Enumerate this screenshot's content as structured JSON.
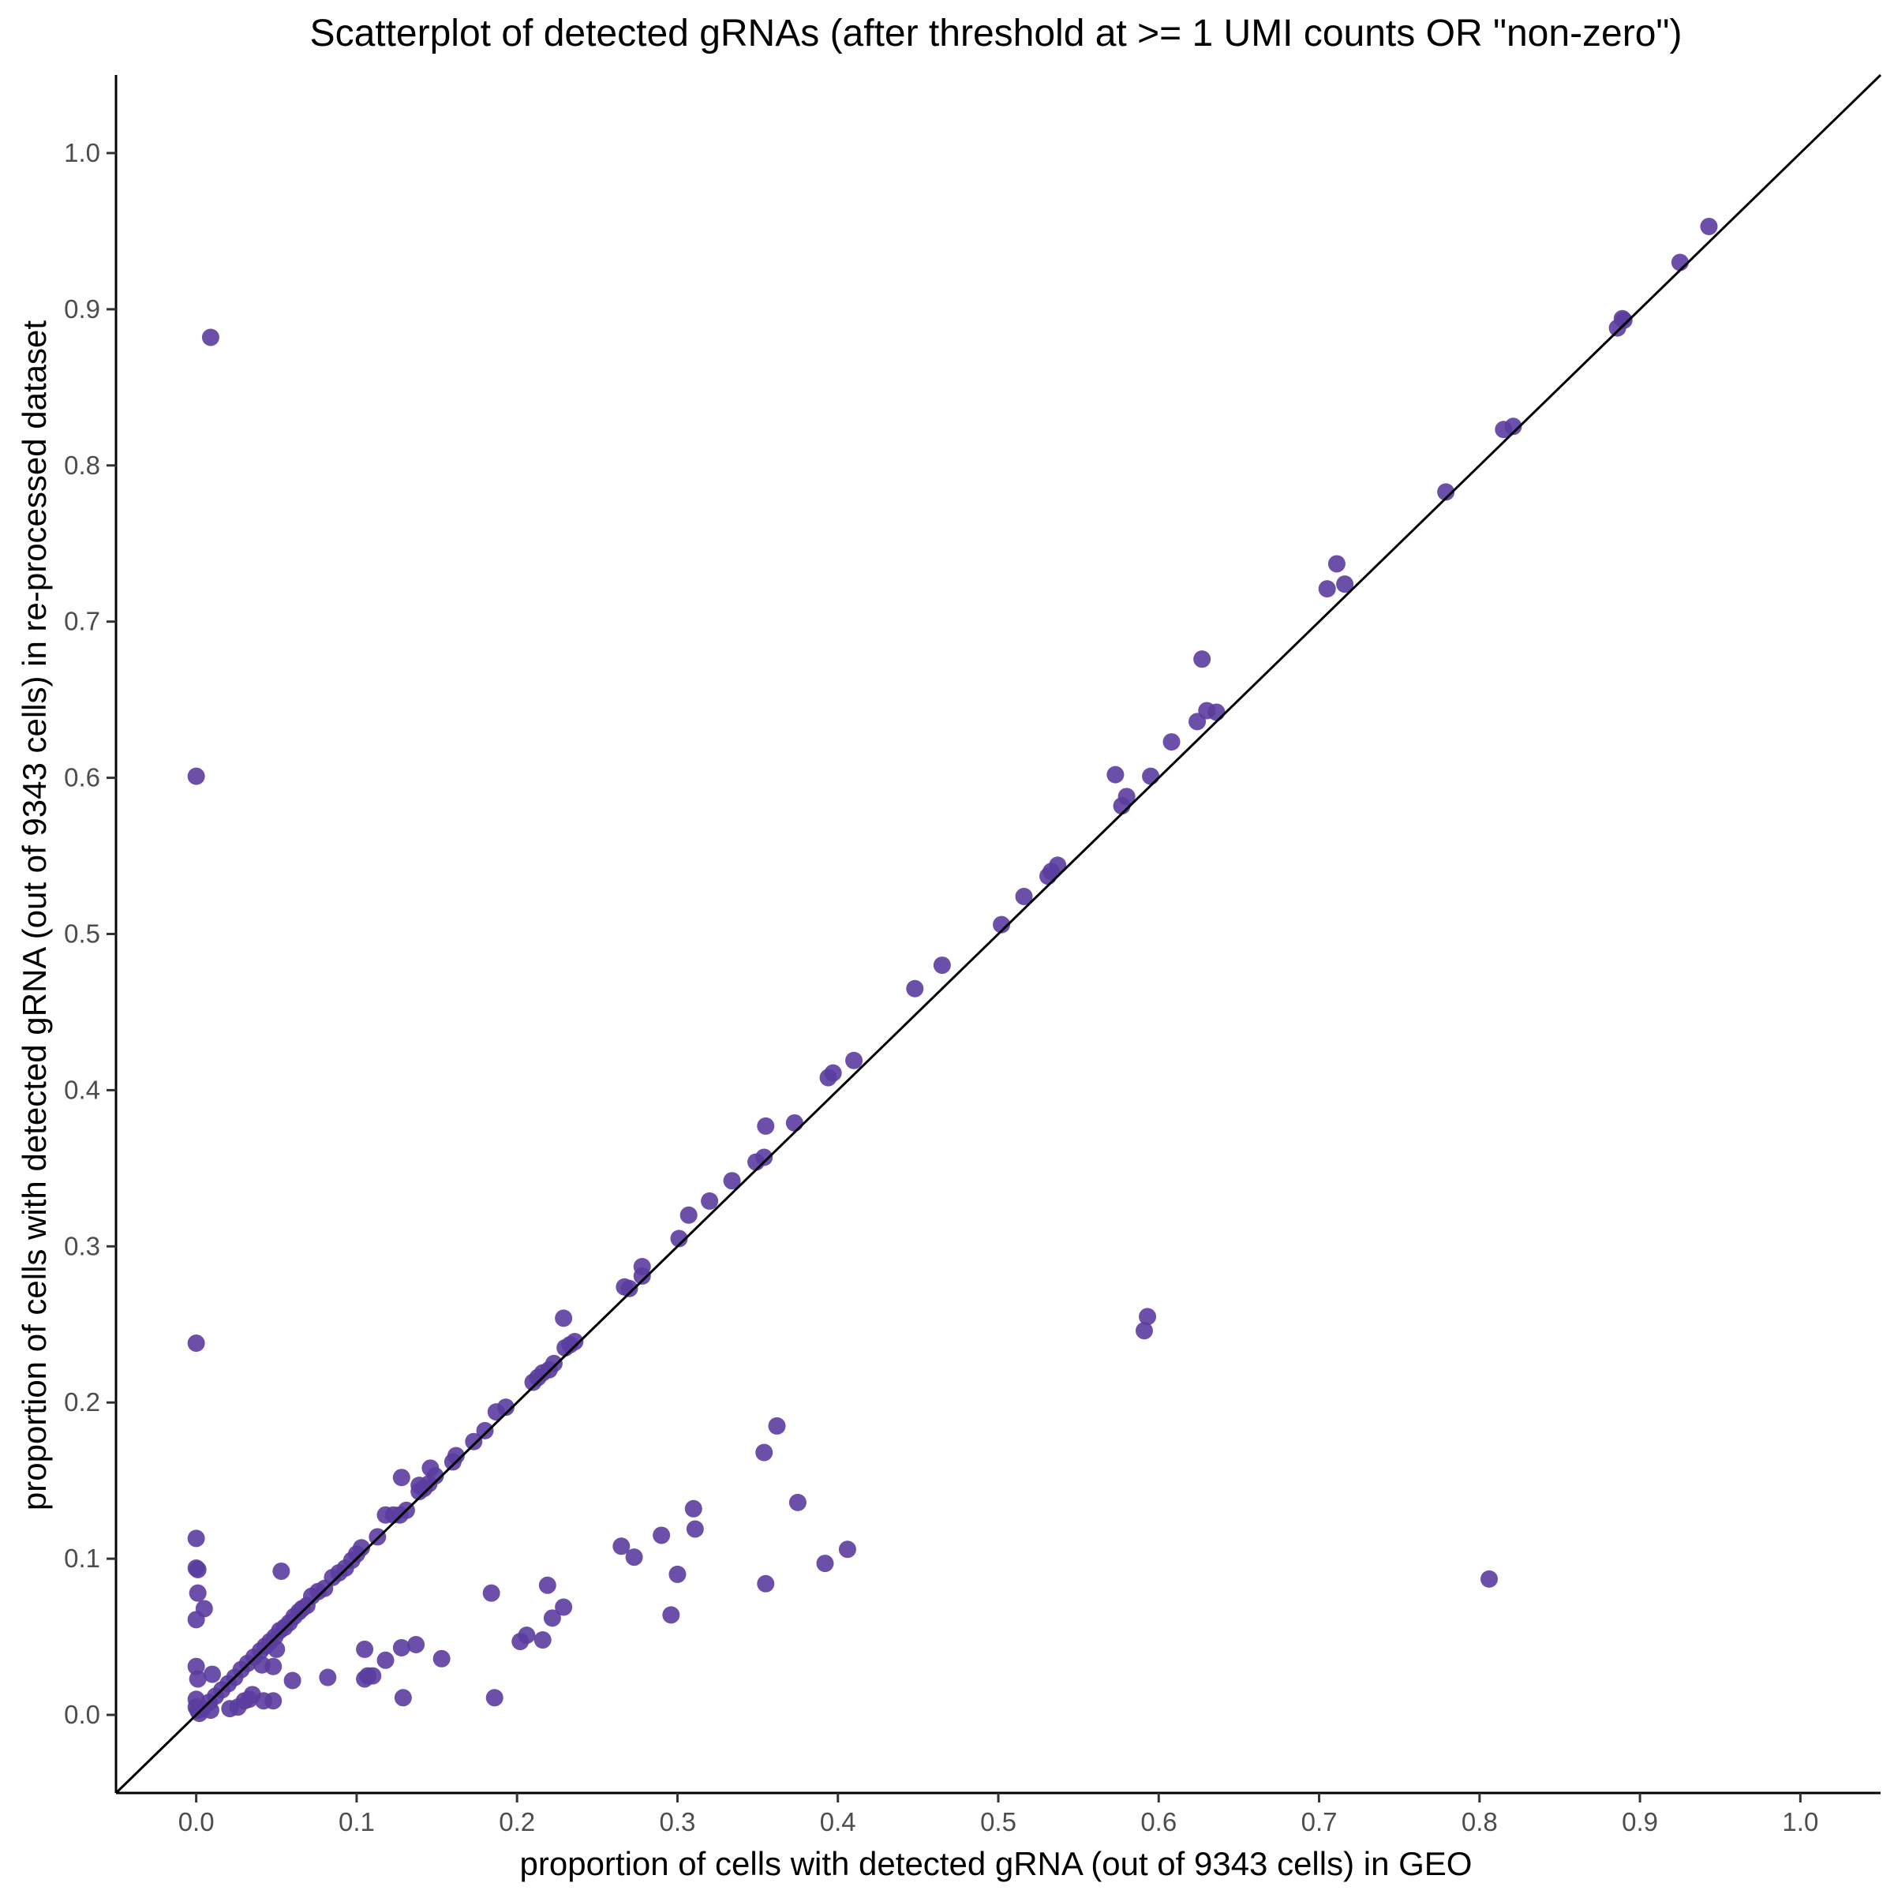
{
  "chart_data": {
    "type": "scatter",
    "title": "Scatterplot of detected gRNAs (after threshold at >= 1 UMI counts OR \"non-zero\")",
    "xlabel": "proportion of cells with detected gRNA (out of 9343 cells) in GEO",
    "ylabel": "proportion of cells with detected gRNA (out of 9343 cells) in re-processed dataset",
    "xlim": [
      -0.05,
      1.05
    ],
    "ylim": [
      -0.05,
      1.05
    ],
    "x_ticks": [
      "0.0",
      "0.1",
      "0.2",
      "0.3",
      "0.4",
      "0.5",
      "0.6",
      "0.7",
      "0.8",
      "0.9",
      "1.0"
    ],
    "y_ticks": [
      "0.0",
      "0.1",
      "0.2",
      "0.3",
      "0.4",
      "0.5",
      "0.6",
      "0.7",
      "0.8",
      "0.9",
      "1.0"
    ],
    "grid": false,
    "reference_line": {
      "slope": 1,
      "intercept": 0
    },
    "point_color": "#5B3C9E",
    "points": [
      [
        0.943,
        0.953
      ],
      [
        0.925,
        0.93
      ],
      [
        0.889,
        0.894
      ],
      [
        0.886,
        0.888
      ],
      [
        0.89,
        0.893
      ],
      [
        0.821,
        0.825
      ],
      [
        0.815,
        0.823
      ],
      [
        0.779,
        0.783
      ],
      [
        0.711,
        0.737
      ],
      [
        0.705,
        0.721
      ],
      [
        0.716,
        0.724
      ],
      [
        0.627,
        0.676
      ],
      [
        0.63,
        0.643
      ],
      [
        0.636,
        0.642
      ],
      [
        0.624,
        0.636
      ],
      [
        0.608,
        0.623
      ],
      [
        0.595,
        0.601
      ],
      [
        0.573,
        0.602
      ],
      [
        0.58,
        0.588
      ],
      [
        0.577,
        0.582
      ],
      [
        0.537,
        0.544
      ],
      [
        0.533,
        0.54
      ],
      [
        0.531,
        0.537
      ],
      [
        0.516,
        0.524
      ],
      [
        0.502,
        0.506
      ],
      [
        0.465,
        0.48
      ],
      [
        0.448,
        0.465
      ],
      [
        0.41,
        0.419
      ],
      [
        0.397,
        0.411
      ],
      [
        0.394,
        0.408
      ],
      [
        0.373,
        0.379
      ],
      [
        0.355,
        0.377
      ],
      [
        0.354,
        0.357
      ],
      [
        0.349,
        0.354
      ],
      [
        0.334,
        0.342
      ],
      [
        0.32,
        0.329
      ],
      [
        0.307,
        0.32
      ],
      [
        0.301,
        0.305
      ],
      [
        0.278,
        0.287
      ],
      [
        0.278,
        0.281
      ],
      [
        0.27,
        0.273
      ],
      [
        0.267,
        0.274
      ],
      [
        0.229,
        0.254
      ],
      [
        0.236,
        0.239
      ],
      [
        0.233,
        0.237
      ],
      [
        0.23,
        0.235
      ],
      [
        0.223,
        0.225
      ],
      [
        0.22,
        0.221
      ],
      [
        0.216,
        0.219
      ],
      [
        0.213,
        0.216
      ],
      [
        0.21,
        0.213
      ],
      [
        0.193,
        0.197
      ],
      [
        0.187,
        0.194
      ],
      [
        0.18,
        0.182
      ],
      [
        0.173,
        0.175
      ],
      [
        0.162,
        0.166
      ],
      [
        0.16,
        0.162
      ],
      [
        0.149,
        0.153
      ],
      [
        0.146,
        0.158
      ],
      [
        0.145,
        0.148
      ],
      [
        0.142,
        0.145
      ],
      [
        0.139,
        0.147
      ],
      [
        0.139,
        0.143
      ],
      [
        0.131,
        0.131
      ],
      [
        0.128,
        0.152
      ],
      [
        0.127,
        0.128
      ],
      [
        0.123,
        0.128
      ],
      [
        0.118,
        0.128
      ],
      [
        0.113,
        0.114
      ],
      [
        0.103,
        0.107
      ],
      [
        0.1,
        0.103
      ],
      [
        0.097,
        0.099
      ],
      [
        0.093,
        0.094
      ],
      [
        0.089,
        0.091
      ],
      [
        0.085,
        0.088
      ],
      [
        0.08,
        0.081
      ],
      [
        0.076,
        0.079
      ],
      [
        0.072,
        0.076
      ],
      [
        0.069,
        0.07
      ],
      [
        0.066,
        0.068
      ],
      [
        0.064,
        0.066
      ],
      [
        0.061,
        0.063
      ],
      [
        0.058,
        0.059
      ],
      [
        0.055,
        0.056
      ],
      [
        0.052,
        0.054
      ],
      [
        0.049,
        0.05
      ],
      [
        0.046,
        0.047
      ],
      [
        0.043,
        0.044
      ],
      [
        0.04,
        0.041
      ],
      [
        0.036,
        0.037
      ],
      [
        0.032,
        0.033
      ],
      [
        0.028,
        0.029
      ],
      [
        0.024,
        0.024
      ],
      [
        0.02,
        0.02
      ],
      [
        0.016,
        0.016
      ],
      [
        0.012,
        0.012
      ],
      [
        0.008,
        0.008
      ],
      [
        0.004,
        0.004
      ],
      [
        0.002,
        0.001
      ],
      [
        0.01,
        0.026
      ],
      [
        0.009,
        0.882
      ],
      [
        0.0,
        0.601
      ],
      [
        0.0,
        0.238
      ],
      [
        0.0,
        0.113
      ],
      [
        0.0,
        0.094
      ],
      [
        0.001,
        0.093
      ],
      [
        0.001,
        0.078
      ],
      [
        0.005,
        0.068
      ],
      [
        0.0,
        0.061
      ],
      [
        0.0,
        0.031
      ],
      [
        0.001,
        0.023
      ],
      [
        0.0,
        0.01
      ],
      [
        0.0,
        0.005
      ],
      [
        0.001,
        0.003
      ],
      [
        0.053,
        0.092
      ],
      [
        0.05,
        0.042
      ],
      [
        0.048,
        0.031
      ],
      [
        0.041,
        0.032
      ],
      [
        0.048,
        0.009
      ],
      [
        0.042,
        0.009
      ],
      [
        0.035,
        0.013
      ],
      [
        0.033,
        0.01
      ],
      [
        0.03,
        0.009
      ],
      [
        0.026,
        0.005
      ],
      [
        0.021,
        0.004
      ],
      [
        0.009,
        0.003
      ],
      [
        0.06,
        0.022
      ],
      [
        0.082,
        0.024
      ],
      [
        0.105,
        0.042
      ],
      [
        0.107,
        0.025
      ],
      [
        0.105,
        0.023
      ],
      [
        0.11,
        0.025
      ],
      [
        0.118,
        0.035
      ],
      [
        0.128,
        0.043
      ],
      [
        0.137,
        0.045
      ],
      [
        0.153,
        0.036
      ],
      [
        0.129,
        0.011
      ],
      [
        0.184,
        0.078
      ],
      [
        0.186,
        0.011
      ],
      [
        0.202,
        0.047
      ],
      [
        0.206,
        0.051
      ],
      [
        0.216,
        0.048
      ],
      [
        0.219,
        0.083
      ],
      [
        0.222,
        0.062
      ],
      [
        0.229,
        0.069
      ],
      [
        0.265,
        0.108
      ],
      [
        0.273,
        0.101
      ],
      [
        0.29,
        0.115
      ],
      [
        0.296,
        0.064
      ],
      [
        0.3,
        0.09
      ],
      [
        0.31,
        0.132
      ],
      [
        0.311,
        0.119
      ],
      [
        0.354,
        0.168
      ],
      [
        0.362,
        0.185
      ],
      [
        0.355,
        0.084
      ],
      [
        0.375,
        0.136
      ],
      [
        0.392,
        0.097
      ],
      [
        0.406,
        0.106
      ],
      [
        0.593,
        0.255
      ],
      [
        0.591,
        0.246
      ],
      [
        0.806,
        0.087
      ]
    ]
  }
}
